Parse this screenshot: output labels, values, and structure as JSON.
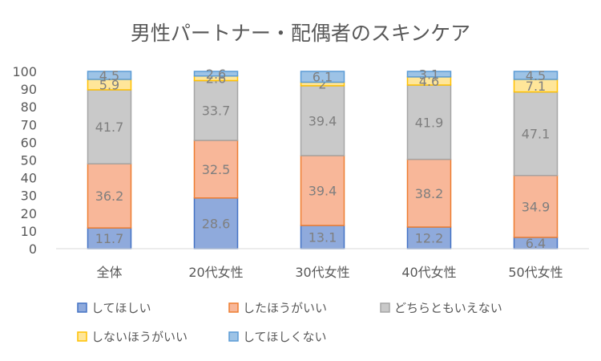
{
  "chart_data": {
    "type": "bar",
    "stacked": true,
    "title": "男性パートナー・配偶者のスキンケア",
    "xlabel": "",
    "ylabel": "",
    "ylim": [
      0,
      100
    ],
    "yticks": [
      0,
      10,
      20,
      30,
      40,
      50,
      60,
      70,
      80,
      90,
      100
    ],
    "grid": false,
    "legend_position": "bottom",
    "categories": [
      "全体",
      "20代女性",
      "30代女性",
      "40代女性",
      "50代女性"
    ],
    "series": [
      {
        "name": "してほしい",
        "color": "#8faadc",
        "border": "#4472c4",
        "values": [
          11.7,
          28.6,
          13.1,
          12.2,
          6.4
        ]
      },
      {
        "name": "したほうがいい",
        "color": "#f8b799",
        "border": "#ed7d31",
        "values": [
          36.2,
          32.5,
          39.4,
          38.2,
          34.9
        ]
      },
      {
        "name": "どちらともいえない",
        "color": "#c9c9c9",
        "border": "#a5a5a5",
        "values": [
          41.7,
          33.7,
          39.4,
          41.9,
          47.1
        ]
      },
      {
        "name": "しないほうがいい",
        "color": "#ffe699",
        "border": "#ffc000",
        "values": [
          5.9,
          2.6,
          2,
          4.6,
          7.1
        ]
      },
      {
        "name": "してほしくない",
        "color": "#9dc3e6",
        "border": "#5b9bd5",
        "values": [
          4.5,
          2.6,
          6.1,
          3.1,
          4.5
        ]
      }
    ]
  }
}
